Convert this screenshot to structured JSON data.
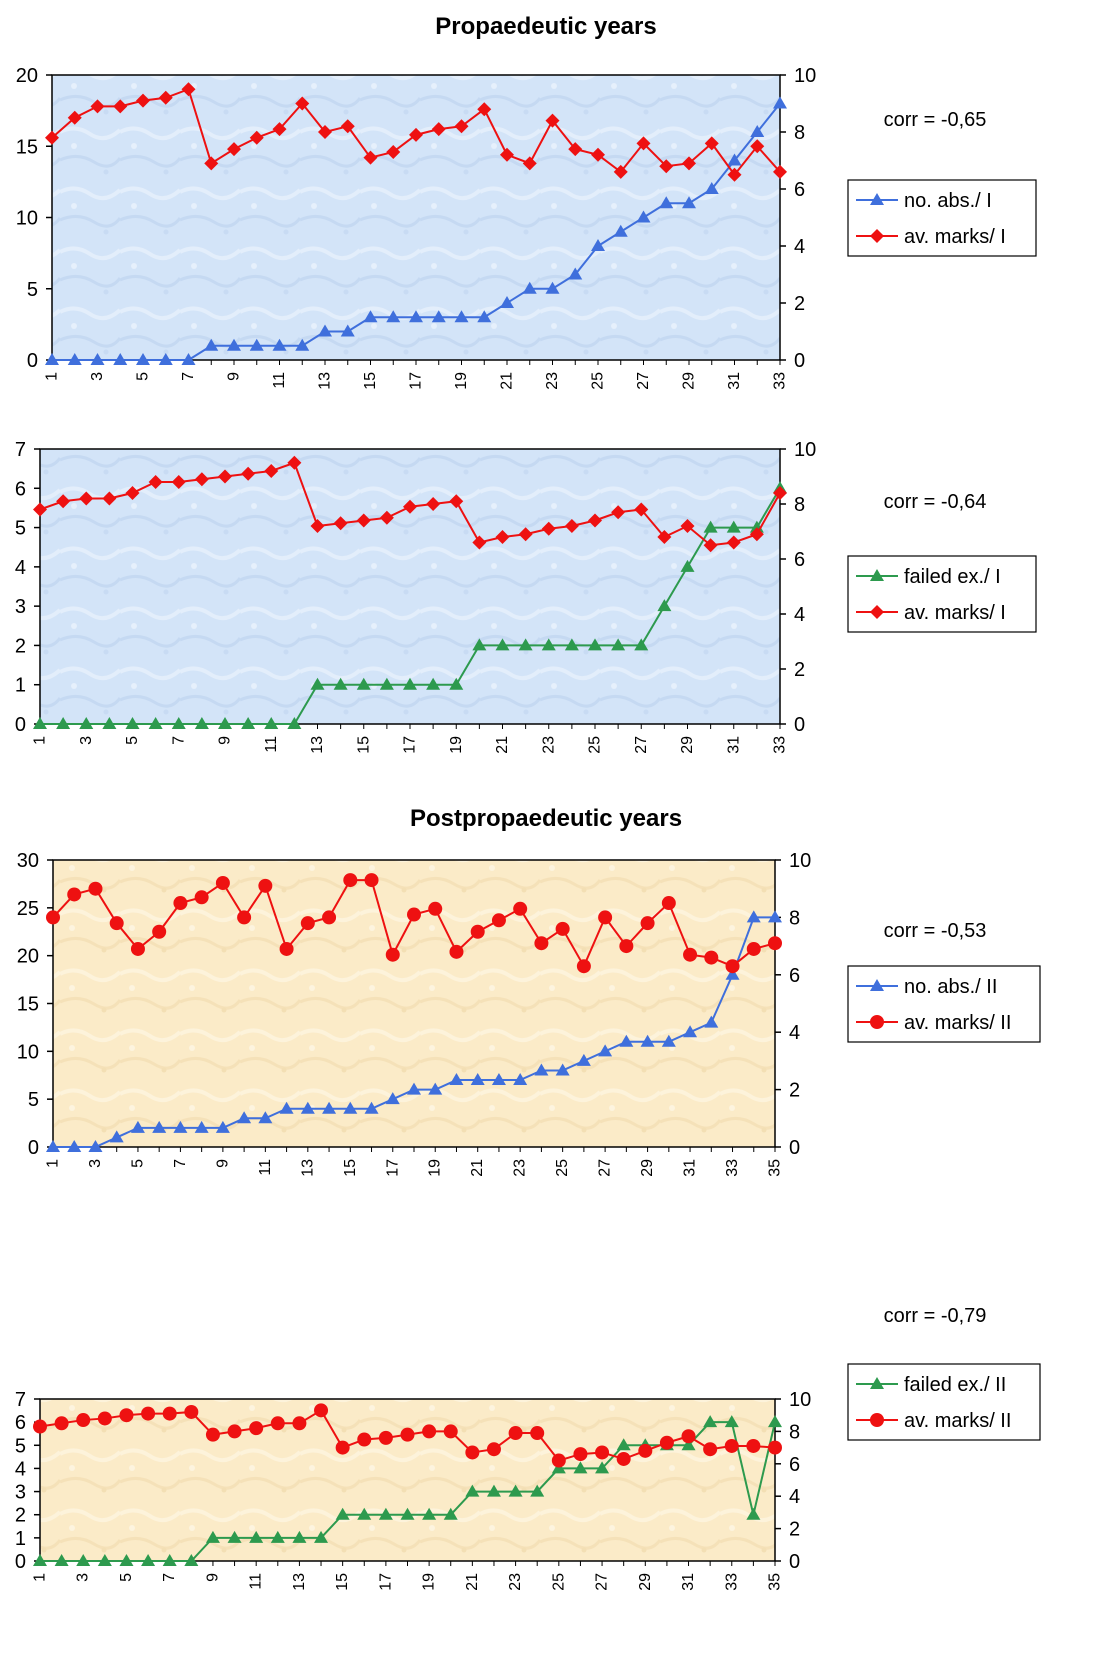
{
  "headers": {
    "propaedeutic": "Propaedeutic years",
    "postpropaedeutic": "Postpropaedeutic years"
  },
  "colors": {
    "blue": "#3f6fdc",
    "red": "#ee1111",
    "green": "#2d9a4e",
    "blue_bg": "#d3e4f8",
    "beige_bg": "#fbebc8"
  },
  "chart_data": [
    {
      "type": "line",
      "panel": "propaedeutic",
      "background": "blue",
      "corr": "corr = -0,65",
      "x": [
        1,
        2,
        3,
        4,
        5,
        6,
        7,
        8,
        9,
        10,
        11,
        12,
        13,
        14,
        15,
        16,
        17,
        18,
        19,
        20,
        21,
        22,
        23,
        24,
        25,
        26,
        27,
        28,
        29,
        30,
        31,
        32,
        33
      ],
      "x_tick_labels": [
        "1",
        "3",
        "5",
        "7",
        "9",
        "11",
        "13",
        "15",
        "17",
        "19",
        "21",
        "23",
        "25",
        "27",
        "29",
        "31",
        "33"
      ],
      "y_left": {
        "ticks": [
          "0",
          "5",
          "10",
          "15",
          "20"
        ],
        "ylim": [
          0,
          20
        ]
      },
      "y_right": {
        "ticks": [
          "0",
          "2",
          "4",
          "6",
          "8",
          "10"
        ],
        "ylim": [
          0,
          10
        ]
      },
      "legend": {
        "placement": "right"
      },
      "series": [
        {
          "name": "no. abs./ I",
          "axis": "left",
          "color": "blue",
          "marker": "triangle",
          "values": [
            0,
            0,
            0,
            0,
            0,
            0,
            0,
            1,
            1,
            1,
            1,
            1,
            2,
            2,
            3,
            3,
            3,
            3,
            3,
            3,
            4,
            5,
            5,
            6,
            8,
            9,
            10,
            11,
            11,
            12,
            14,
            16,
            18
          ]
        },
        {
          "name": "av. marks/ I",
          "axis": "right",
          "color": "red",
          "marker": "diamond",
          "values": [
            7.8,
            8.5,
            8.9,
            8.9,
            9.1,
            9.2,
            9.5,
            6.9,
            7.4,
            7.8,
            8.1,
            9.0,
            8.0,
            8.2,
            7.1,
            7.3,
            7.9,
            8.1,
            8.2,
            8.8,
            7.2,
            6.9,
            8.4,
            7.4,
            7.2,
            6.6,
            7.6,
            6.8,
            6.9,
            7.6,
            6.5,
            7.5,
            6.6
          ]
        }
      ]
    },
    {
      "type": "line",
      "panel": "propaedeutic",
      "background": "blue",
      "corr": "corr = -0,64",
      "x": [
        1,
        2,
        3,
        4,
        5,
        6,
        7,
        8,
        9,
        10,
        11,
        12,
        13,
        14,
        15,
        16,
        17,
        18,
        19,
        20,
        21,
        22,
        23,
        24,
        25,
        26,
        27,
        28,
        29,
        30,
        31,
        32,
        33
      ],
      "x_tick_labels": [
        "1",
        "3",
        "5",
        "7",
        "9",
        "11",
        "13",
        "15",
        "17",
        "19",
        "21",
        "23",
        "25",
        "27",
        "29",
        "31",
        "33"
      ],
      "y_left": {
        "ticks": [
          "0",
          "1",
          "2",
          "3",
          "4",
          "5",
          "6",
          "7"
        ],
        "ylim": [
          0,
          7
        ]
      },
      "y_right": {
        "ticks": [
          "0",
          "2",
          "4",
          "6",
          "8",
          "10"
        ],
        "ylim": [
          0,
          10
        ]
      },
      "legend": {
        "placement": "right"
      },
      "series": [
        {
          "name": "failed ex./ I",
          "axis": "left",
          "color": "green",
          "marker": "triangle",
          "values": [
            0,
            0,
            0,
            0,
            0,
            0,
            0,
            0,
            0,
            0,
            0,
            0,
            1,
            1,
            1,
            1,
            1,
            1,
            1,
            2,
            2,
            2,
            2,
            2,
            2,
            2,
            2,
            3,
            4,
            5,
            5,
            5,
            6
          ]
        },
        {
          "name": "av. marks/ I",
          "axis": "right",
          "color": "red",
          "marker": "diamond",
          "values": [
            7.8,
            8.1,
            8.2,
            8.2,
            8.4,
            8.8,
            8.8,
            8.9,
            9.0,
            9.1,
            9.2,
            9.5,
            7.2,
            7.3,
            7.4,
            7.5,
            7.9,
            8.0,
            8.1,
            6.6,
            6.8,
            6.9,
            7.1,
            7.2,
            7.4,
            7.7,
            7.8,
            6.8,
            7.2,
            6.5,
            6.6,
            6.9,
            8.4
          ]
        }
      ]
    },
    {
      "type": "line",
      "panel": "postpropaedeutic",
      "background": "beige",
      "corr": "corr = -0,53",
      "x": [
        1,
        2,
        3,
        4,
        5,
        6,
        7,
        8,
        9,
        10,
        11,
        12,
        13,
        14,
        15,
        16,
        17,
        18,
        19,
        20,
        21,
        22,
        23,
        24,
        25,
        26,
        27,
        28,
        29,
        30,
        31,
        32,
        33,
        34,
        35
      ],
      "x_tick_labels": [
        "1",
        "3",
        "5",
        "7",
        "9",
        "11",
        "13",
        "15",
        "17",
        "19",
        "21",
        "23",
        "25",
        "27",
        "29",
        "31",
        "33",
        "35"
      ],
      "y_left": {
        "ticks": [
          "0",
          "5",
          "10",
          "15",
          "20",
          "25",
          "30"
        ],
        "ylim": [
          0,
          30
        ]
      },
      "y_right": {
        "ticks": [
          "0",
          "2",
          "4",
          "6",
          "8",
          "10"
        ],
        "ylim": [
          0,
          10
        ]
      },
      "legend": {
        "placement": "right"
      },
      "series": [
        {
          "name": "no. abs./ II",
          "axis": "left",
          "color": "blue",
          "marker": "triangle",
          "values": [
            0,
            0,
            0,
            1,
            2,
            2,
            2,
            2,
            2,
            3,
            3,
            4,
            4,
            4,
            4,
            4,
            5,
            6,
            6,
            7,
            7,
            7,
            7,
            8,
            8,
            9,
            10,
            11,
            11,
            11,
            12,
            13,
            18,
            24,
            24
          ]
        },
        {
          "name": "av. marks/ II",
          "axis": "right",
          "color": "red",
          "marker": "circle",
          "values": [
            8.0,
            8.8,
            9.0,
            7.8,
            6.9,
            7.5,
            8.5,
            8.7,
            9.2,
            8.0,
            9.1,
            6.9,
            7.8,
            8.0,
            9.3,
            9.3,
            6.7,
            8.1,
            8.3,
            6.8,
            7.5,
            7.9,
            8.3,
            7.1,
            7.6,
            6.3,
            8.0,
            7.0,
            7.8,
            8.5,
            6.7,
            6.6,
            6.3,
            6.9,
            7.1
          ]
        }
      ]
    },
    {
      "type": "line",
      "panel": "postpropaedeutic",
      "background": "beige",
      "corr": "corr = -0,79",
      "x": [
        1,
        2,
        3,
        4,
        5,
        6,
        7,
        8,
        9,
        10,
        11,
        12,
        13,
        14,
        15,
        16,
        17,
        18,
        19,
        20,
        21,
        22,
        23,
        24,
        25,
        26,
        27,
        28,
        29,
        30,
        31,
        32,
        33,
        34,
        35
      ],
      "x_tick_labels": [
        "1",
        "3",
        "5",
        "7",
        "9",
        "11",
        "13",
        "15",
        "17",
        "19",
        "21",
        "23",
        "25",
        "27",
        "29",
        "31",
        "33",
        "35"
      ],
      "y_left": {
        "ticks": [
          "0",
          "1",
          "2",
          "3",
          "4",
          "5",
          "6",
          "7"
        ],
        "ylim": [
          0,
          7
        ]
      },
      "y_right": {
        "ticks": [
          "0",
          "2",
          "4",
          "6",
          "8",
          "10"
        ],
        "ylim": [
          0,
          10
        ]
      },
      "legend": {
        "placement": "right"
      },
      "series": [
        {
          "name": "failed ex./ II",
          "axis": "left",
          "color": "green",
          "marker": "triangle",
          "values": [
            0,
            0,
            0,
            0,
            0,
            0,
            0,
            0,
            1,
            1,
            1,
            1,
            1,
            1,
            2,
            2,
            2,
            2,
            2,
            2,
            3,
            3,
            3,
            3,
            4,
            4,
            4,
            5,
            5,
            5,
            5,
            6,
            6,
            2,
            6
          ]
        },
        {
          "name": "av. marks/ II",
          "axis": "right",
          "color": "red",
          "marker": "circle",
          "values": [
            8.3,
            8.5,
            8.7,
            8.8,
            9.0,
            9.1,
            9.1,
            9.2,
            7.8,
            8.0,
            8.2,
            8.5,
            8.5,
            9.3,
            7.0,
            7.5,
            7.6,
            7.8,
            8.0,
            8.0,
            6.7,
            6.9,
            7.9,
            7.9,
            6.2,
            6.6,
            6.7,
            6.3,
            6.8,
            7.3,
            7.7,
            6.9,
            7.1,
            7.1,
            7.0
          ]
        }
      ]
    }
  ]
}
